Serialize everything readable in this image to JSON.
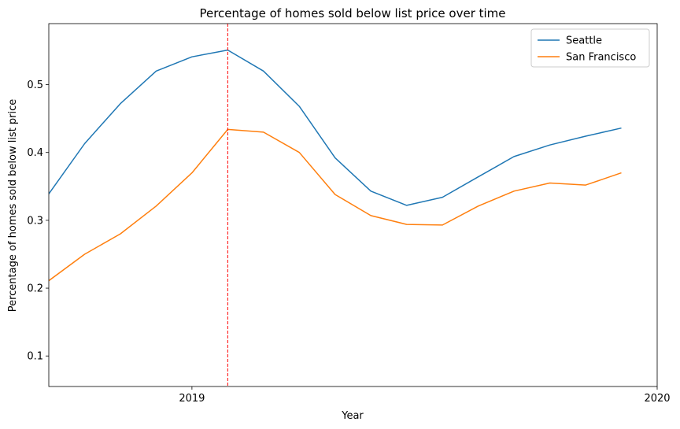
{
  "chart_data": {
    "type": "line",
    "title": "Percentage of homes sold below list price over time",
    "xlabel": "Year",
    "ylabel": "Percentage of homes sold below list price",
    "x": [
      "2018-08",
      "2018-09",
      "2018-10",
      "2018-11",
      "2018-12",
      "2019-01",
      "2019-02",
      "2019-03",
      "2019-04",
      "2019-05",
      "2019-06",
      "2019-07",
      "2019-08",
      "2019-09",
      "2019-10",
      "2019-11",
      "2019-12"
    ],
    "xlim": [
      "2018-08",
      "2020-01"
    ],
    "ylim": [
      0.055,
      0.59
    ],
    "x_ticks": [
      {
        "label": "2019",
        "at": "2018-12"
      },
      {
        "label": "2020",
        "at": "2020-01"
      }
    ],
    "y_ticks": [
      "0.1",
      "0.2",
      "0.3",
      "0.4",
      "0.5"
    ],
    "vline": {
      "at": "2019-01",
      "color": "#ff0000",
      "style": "dashed"
    },
    "series": [
      {
        "name": "Seattle",
        "color": "#1f77b4",
        "values": [
          0.339,
          0.413,
          0.472,
          0.52,
          0.541,
          0.551,
          0.52,
          0.468,
          0.392,
          0.343,
          0.322,
          0.334,
          0.364,
          0.394,
          0.411,
          0.424,
          0.436
        ]
      },
      {
        "name": "San Francisco",
        "color": "#ff7f0e",
        "values": [
          0.211,
          0.25,
          0.28,
          0.321,
          0.37,
          0.434,
          0.43,
          0.4,
          0.338,
          0.307,
          0.294,
          0.293,
          0.321,
          0.343,
          0.355,
          0.352,
          0.37
        ]
      }
    ],
    "legend": "top-right",
    "grid": false
  }
}
